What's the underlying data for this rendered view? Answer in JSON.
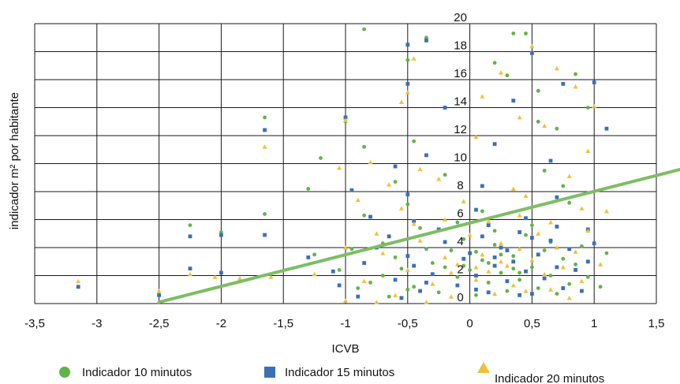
{
  "chart_data": {
    "type": "scatter",
    "title": "",
    "xlabel": "ICVB",
    "ylabel": "indicador m² por habitante",
    "xlim": [
      -3.5,
      1.5
    ],
    "ylim": [
      0,
      20
    ],
    "x_ticks": [
      "-3,5",
      "-3",
      "-2,5",
      "-2",
      "-1,5",
      "-1",
      "-0,5",
      "0",
      "0,5",
      "1",
      "1,5"
    ],
    "x_tick_values": [
      -3.5,
      -3,
      -2.5,
      -2,
      -1.5,
      -1,
      -0.5,
      0,
      0.5,
      1,
      1.5
    ],
    "y_ticks": [
      "0",
      "2",
      "4",
      "6",
      "8",
      "10",
      "12",
      "14",
      "16",
      "18",
      "20"
    ],
    "y_tick_values": [
      0,
      2,
      4,
      6,
      8,
      10,
      12,
      14,
      16,
      18,
      20
    ],
    "grid": true,
    "legend_position": "bottom",
    "series": [
      {
        "name": "Indicador 10 minutos",
        "color": "#5fb446",
        "marker": "circle",
        "points": [
          [
            -1.65,
            13.3
          ],
          [
            -1.0,
            13.0
          ],
          [
            -0.85,
            19.6
          ],
          [
            -0.35,
            19.0
          ],
          [
            0.35,
            19.3
          ],
          [
            0.45,
            19.3
          ],
          [
            -0.5,
            17.4
          ],
          [
            0.2,
            17.2
          ],
          [
            0.3,
            16.3
          ],
          [
            0.55,
            15.2
          ],
          [
            0.85,
            16.4
          ],
          [
            0.95,
            14.0
          ],
          [
            -1.2,
            10.4
          ],
          [
            -0.85,
            11.2
          ],
          [
            -0.45,
            11.6
          ],
          [
            0.55,
            13.0
          ],
          [
            0.7,
            12.5
          ],
          [
            -1.65,
            6.4
          ],
          [
            -2.0,
            5.1
          ],
          [
            -2.25,
            5.6
          ],
          [
            -1.3,
            8.2
          ],
          [
            -0.6,
            8.7
          ],
          [
            -0.2,
            9.2
          ],
          [
            0.6,
            9.5
          ],
          [
            0.75,
            8.4
          ],
          [
            -0.85,
            6.3
          ],
          [
            -0.5,
            7.1
          ],
          [
            0.1,
            6.6
          ],
          [
            0.8,
            7.2
          ],
          [
            -1.25,
            3.5
          ],
          [
            -0.95,
            3.9
          ],
          [
            -0.7,
            4.3
          ],
          [
            -0.55,
            2.5
          ],
          [
            -0.45,
            1.2
          ],
          [
            -0.3,
            2.9
          ],
          [
            -0.25,
            0.8
          ],
          [
            -0.15,
            3.8
          ],
          [
            -0.1,
            1.9
          ],
          [
            -0.05,
            4.6
          ],
          [
            0.0,
            2.4
          ],
          [
            0.05,
            0.6
          ],
          [
            0.1,
            3.1
          ],
          [
            0.15,
            1.5
          ],
          [
            0.2,
            4.2
          ],
          [
            0.25,
            2.2
          ],
          [
            0.3,
            0.9
          ],
          [
            0.35,
            3.4
          ],
          [
            0.4,
            1.7
          ],
          [
            0.45,
            4.9
          ],
          [
            0.5,
            2.6
          ],
          [
            0.55,
            1.1
          ],
          [
            0.6,
            3.8
          ],
          [
            0.65,
            2.0
          ],
          [
            0.7,
            0.7
          ],
          [
            0.75,
            3.2
          ],
          [
            0.8,
            1.4
          ],
          [
            0.85,
            2.8
          ],
          [
            0.9,
            4.1
          ],
          [
            0.95,
            1.9
          ],
          [
            1.05,
            1.2
          ],
          [
            1.1,
            3.6
          ],
          [
            -0.6,
            3.3
          ],
          [
            -0.4,
            5.4
          ],
          [
            -0.35,
            3.9
          ],
          [
            -0.2,
            2.6
          ],
          [
            -0.1,
            5.8
          ],
          [
            0.05,
            3.7
          ],
          [
            0.2,
            5.2
          ],
          [
            0.35,
            2.5
          ],
          [
            0.5,
            5.6
          ],
          [
            0.65,
            4.4
          ],
          [
            -0.8,
            1.5
          ],
          [
            -0.7,
            2.0
          ],
          [
            -0.65,
            0.5
          ],
          [
            -0.5,
            1.0
          ],
          [
            -1.05,
            2.4
          ],
          [
            -0.9,
            1.1
          ],
          [
            0.15,
            2.9
          ],
          [
            0.25,
            3.5
          ],
          [
            0.4,
            2.2
          ],
          [
            -0.05,
            2.7
          ]
        ]
      },
      {
        "name": "Indicador 15 minutos",
        "color": "#3b6fb6",
        "marker": "square",
        "points": [
          [
            -3.15,
            1.2
          ],
          [
            -2.5,
            0.6
          ],
          [
            -2.25,
            2.5
          ],
          [
            -2.0,
            2.2
          ],
          [
            -1.65,
            12.4
          ],
          [
            -1.0,
            13.3
          ],
          [
            -0.5,
            18.5
          ],
          [
            -0.35,
            18.8
          ],
          [
            -0.5,
            15.7
          ],
          [
            0.5,
            17.9
          ],
          [
            0.75,
            15.7
          ],
          [
            1.0,
            15.8
          ],
          [
            1.1,
            12.5
          ],
          [
            -0.2,
            14.0
          ],
          [
            0.35,
            14.5
          ],
          [
            -0.6,
            9.8
          ],
          [
            -0.35,
            10.6
          ],
          [
            0.2,
            11.4
          ],
          [
            0.65,
            10.2
          ],
          [
            -1.65,
            4.9
          ],
          [
            -2.0,
            4.9
          ],
          [
            -2.25,
            4.8
          ],
          [
            -0.95,
            8.1
          ],
          [
            -0.5,
            7.8
          ],
          [
            0.1,
            8.4
          ],
          [
            0.7,
            7.6
          ],
          [
            -0.8,
            6.2
          ],
          [
            -0.45,
            5.9
          ],
          [
            0.05,
            6.7
          ],
          [
            0.45,
            6.1
          ],
          [
            0.95,
            5.3
          ],
          [
            -1.3,
            3.3
          ],
          [
            -1.1,
            2.3
          ],
          [
            -0.75,
            4.0
          ],
          [
            -0.6,
            1.7
          ],
          [
            -0.5,
            3.4
          ],
          [
            -0.4,
            0.9
          ],
          [
            -0.3,
            2.1
          ],
          [
            -0.2,
            4.4
          ],
          [
            -0.1,
            1.3
          ],
          [
            0.0,
            3.6
          ],
          [
            0.05,
            2.0
          ],
          [
            0.1,
            4.8
          ],
          [
            0.15,
            0.8
          ],
          [
            0.2,
            2.7
          ],
          [
            0.25,
            4.0
          ],
          [
            0.3,
            1.6
          ],
          [
            0.35,
            3.0
          ],
          [
            0.4,
            5.1
          ],
          [
            0.45,
            2.3
          ],
          [
            0.5,
            0.7
          ],
          [
            0.55,
            3.5
          ],
          [
            0.6,
            1.8
          ],
          [
            0.65,
            4.5
          ],
          [
            0.7,
            2.6
          ],
          [
            0.75,
            1.1
          ],
          [
            0.8,
            3.9
          ],
          [
            0.85,
            2.4
          ],
          [
            0.9,
            0.9
          ],
          [
            0.95,
            3.0
          ],
          [
            1.0,
            4.3
          ],
          [
            -0.85,
            2.9
          ],
          [
            -0.65,
            4.8
          ],
          [
            -0.45,
            2.7
          ],
          [
            -0.25,
            5.3
          ],
          [
            -0.05,
            3.2
          ],
          [
            0.15,
            5.6
          ],
          [
            0.3,
            3.8
          ],
          [
            0.5,
            4.7
          ],
          [
            0.7,
            5.5
          ],
          [
            -1.05,
            1.3
          ],
          [
            -0.9,
            0.5
          ],
          [
            -0.55,
            0.4
          ],
          [
            -0.35,
            1.5
          ],
          [
            0.05,
            1.0
          ],
          [
            0.2,
            3.3
          ],
          [
            0.4,
            0.6
          ]
        ]
      },
      {
        "name": "Indicador 20 minutos",
        "color": "#f0c137",
        "marker": "triangle",
        "points": [
          [
            -3.15,
            1.6
          ],
          [
            -2.5,
            0.9
          ],
          [
            -2.25,
            2.1
          ],
          [
            -2.05,
            1.9
          ],
          [
            -1.65,
            11.2
          ],
          [
            -1.0,
            13.1
          ],
          [
            -0.5,
            15.1
          ],
          [
            -0.45,
            17.5
          ],
          [
            0.5,
            18.4
          ],
          [
            0.25,
            16.5
          ],
          [
            0.7,
            16.8
          ],
          [
            0.85,
            15.5
          ],
          [
            1.0,
            14.1
          ],
          [
            -0.55,
            14.4
          ],
          [
            0.1,
            14.8
          ],
          [
            0.4,
            13.3
          ],
          [
            -0.8,
            10.1
          ],
          [
            -0.4,
            9.6
          ],
          [
            0.05,
            11.9
          ],
          [
            0.6,
            12.7
          ],
          [
            0.95,
            10.9
          ],
          [
            -1.05,
            9.7
          ],
          [
            -0.65,
            8.5
          ],
          [
            -0.25,
            8.9
          ],
          [
            0.35,
            8.2
          ],
          [
            0.8,
            9.1
          ],
          [
            -1.25,
            2.1
          ],
          [
            -1.6,
            1.9
          ],
          [
            -1.85,
            1.8
          ],
          [
            -0.9,
            7.4
          ],
          [
            -0.55,
            6.8
          ],
          [
            -0.05,
            7.3
          ],
          [
            0.45,
            7.7
          ],
          [
            0.9,
            6.8
          ],
          [
            1.1,
            6.6
          ],
          [
            -1.0,
            4.0
          ],
          [
            -0.85,
            1.6
          ],
          [
            -0.7,
            3.6
          ],
          [
            -0.6,
            0.6
          ],
          [
            -0.5,
            2.4
          ],
          [
            -0.4,
            4.5
          ],
          [
            -0.3,
            1.4
          ],
          [
            -0.2,
            3.3
          ],
          [
            -0.15,
            0.5
          ],
          [
            -0.1,
            2.8
          ],
          [
            0.0,
            4.9
          ],
          [
            0.05,
            1.7
          ],
          [
            0.1,
            3.5
          ],
          [
            0.15,
            2.3
          ],
          [
            0.2,
            0.7
          ],
          [
            0.25,
            4.3
          ],
          [
            0.3,
            2.7
          ],
          [
            0.35,
            1.3
          ],
          [
            0.4,
            3.9
          ],
          [
            0.45,
            0.9
          ],
          [
            0.5,
            3.1
          ],
          [
            0.55,
            5.0
          ],
          [
            0.6,
            2.1
          ],
          [
            0.65,
            1.0
          ],
          [
            0.7,
            4.0
          ],
          [
            0.75,
            2.6
          ],
          [
            0.8,
            0.4
          ],
          [
            0.85,
            3.7
          ],
          [
            0.9,
            1.6
          ],
          [
            0.95,
            5.2
          ],
          [
            1.05,
            2.8
          ],
          [
            -0.75,
            5.0
          ],
          [
            -0.45,
            5.7
          ],
          [
            -0.2,
            6.0
          ],
          [
            0.15,
            5.9
          ],
          [
            0.4,
            6.3
          ],
          [
            0.65,
            5.8
          ],
          [
            -1.0,
            0.2
          ],
          [
            -0.75,
            0.1
          ],
          [
            -0.35,
            0.1
          ],
          [
            0.05,
            2.6
          ],
          [
            0.25,
            3.0
          ],
          [
            -0.15,
            2.2
          ]
        ]
      }
    ],
    "trendline": {
      "color": "#7dbd64",
      "x": [
        -2.5,
        1.7
      ],
      "y": [
        0.1,
        9.6
      ]
    }
  },
  "legend": [
    {
      "label": "Indicador 10 minutos",
      "marker": "circle",
      "color": "#5fb446"
    },
    {
      "label": "Indicador 15 minutos",
      "marker": "square",
      "color": "#3b6fb6"
    },
    {
      "label": "Indicador 20 minutos",
      "marker": "triangle",
      "color": "#f0c137"
    }
  ]
}
